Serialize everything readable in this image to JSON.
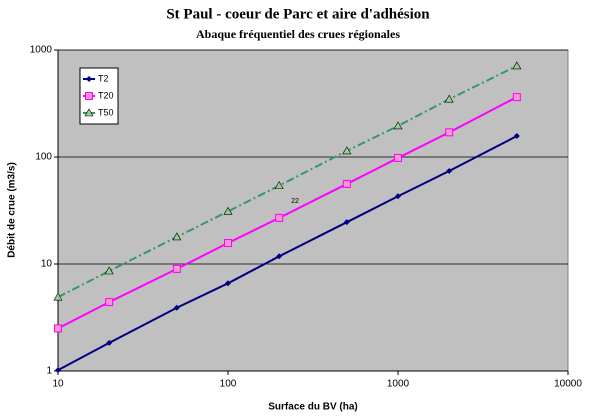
{
  "chart_data": {
    "type": "line",
    "title": "St Paul - coeur de Parc et aire d'adhésion",
    "subtitle": "Abaque fréquentiel des crues régionales",
    "x_label": "Surface du BV (ha)",
    "y_label": "Débit de crue (m3/s)",
    "x": [
      10,
      20,
      50,
      100,
      200,
      500,
      1000,
      2000,
      5000
    ],
    "series": [
      {
        "name": "T2",
        "color": "#000080",
        "marker": "diamond",
        "dash": "solid",
        "values": [
          1.02,
          1.83,
          3.9,
          6.6,
          11.8,
          24.6,
          43,
          74,
          157
        ]
      },
      {
        "name": "T20",
        "color": "#ff00ff",
        "marker": "square",
        "dash": "solid",
        "values": [
          2.5,
          4.4,
          9,
          15.7,
          27,
          56,
          98,
          170,
          363
        ]
      },
      {
        "name": "T50",
        "color": "#339966",
        "marker": "triangle",
        "dash": "dashdot",
        "values": [
          4.9,
          8.6,
          17.9,
          31,
          54,
          114,
          195,
          347,
          710
        ]
      }
    ],
    "annotations": [
      "22"
    ],
    "xlim": [
      10,
      10000
    ],
    "xticks": [
      10,
      100,
      1000,
      10000
    ],
    "ylim": [
      1,
      1000
    ],
    "yticks": [
      1,
      10,
      100,
      1000
    ],
    "xscale": "log",
    "yscale": "log",
    "grid": true,
    "legend": "upper left"
  }
}
